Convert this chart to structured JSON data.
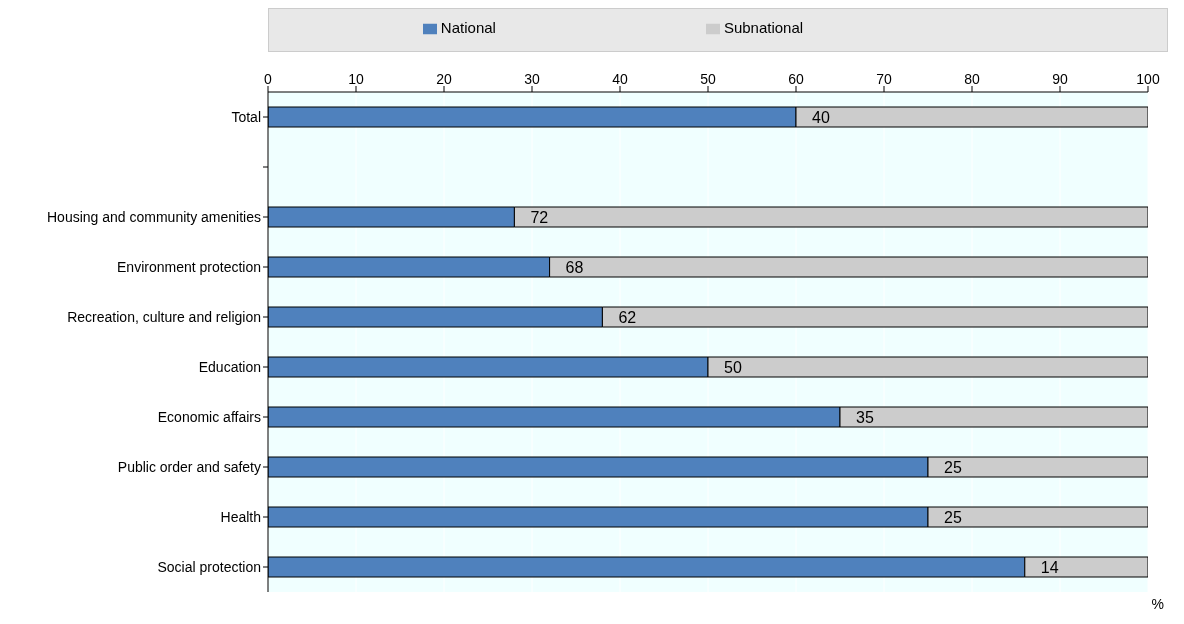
{
  "chart_data": {
    "type": "bar",
    "orientation": "horizontal",
    "stacked": true,
    "xlabel": "%",
    "categories": [
      "Total",
      null,
      "Housing and community amenities",
      "Environment protection",
      "Recreation, culture and religion",
      "Education",
      "Economic affairs",
      "Public order and safety",
      "Health",
      "Social protection"
    ],
    "series": [
      {
        "name": "National",
        "color": "#4f81bd",
        "values": [
          60,
          null,
          28,
          32,
          38,
          50,
          65,
          75,
          75,
          86
        ]
      },
      {
        "name": "Subnational",
        "color": "#cccccc",
        "values": [
          40,
          null,
          72,
          68,
          62,
          50,
          35,
          25,
          25,
          14
        ],
        "value_labels": [
          "40",
          null,
          "72",
          "68",
          "62",
          "50",
          "35",
          "25",
          "25",
          "14"
        ]
      }
    ],
    "xlim": [
      0,
      100
    ],
    "xticks": [
      0,
      10,
      20,
      30,
      40,
      50,
      60,
      70,
      80,
      90,
      100
    ],
    "grid": "x",
    "legend": "top"
  }
}
